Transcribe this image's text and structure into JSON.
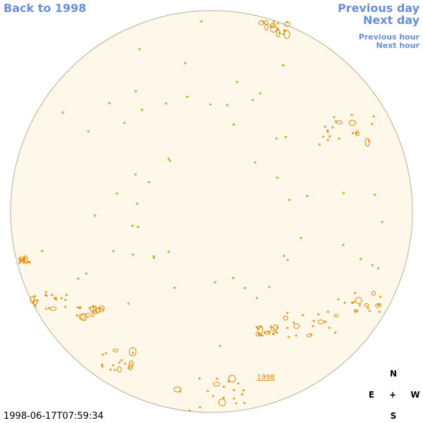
{
  "nav": {
    "back": "Back to 1998",
    "previous_day": "Previous day",
    "next_day": "Next day",
    "previous_hour": "Previous hour",
    "next_hour": "Next hour"
  },
  "disk": {
    "year_link": "1998"
  },
  "timestamp": "1998-06-17T07:59:34",
  "compass": {
    "north": "N",
    "east": "E",
    "center": "+",
    "west": "W",
    "south": "S"
  }
}
